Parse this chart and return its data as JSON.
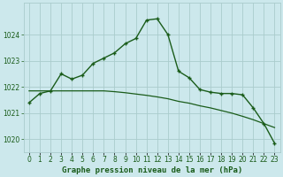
{
  "hours": [
    0,
    1,
    2,
    3,
    4,
    5,
    6,
    7,
    8,
    9,
    10,
    11,
    12,
    13,
    14,
    15,
    16,
    17,
    18,
    19,
    20,
    21,
    22,
    23
  ],
  "line1": [
    1021.4,
    1021.75,
    1021.85,
    1022.5,
    1022.3,
    1022.45,
    1022.9,
    1023.1,
    1023.3,
    1023.65,
    1023.85,
    1024.55,
    1024.6,
    1024.0,
    1022.6,
    1022.35,
    1021.9,
    1021.8,
    1021.75,
    1021.75,
    1021.7,
    1021.2,
    1020.6,
    1019.85
  ],
  "line2": [
    1021.85,
    1021.85,
    1021.85,
    1021.85,
    1021.85,
    1021.85,
    1021.85,
    1021.85,
    1021.82,
    1021.78,
    1021.73,
    1021.68,
    1021.62,
    1021.55,
    1021.45,
    1021.38,
    1021.28,
    1021.2,
    1021.1,
    1021.0,
    1020.88,
    1020.75,
    1020.6,
    1020.45
  ],
  "bg_color": "#cce8ec",
  "grid_color": "#aacccc",
  "line_color": "#1a5c1a",
  "ylabel_ticks": [
    1020,
    1021,
    1022,
    1023,
    1024
  ],
  "ylim": [
    1019.5,
    1025.2
  ],
  "xlim": [
    -0.5,
    23.5
  ],
  "xlabel": "Graphe pression niveau de la mer (hPa)",
  "xlabel_color": "#1a5c1a",
  "tick_color": "#1a5c1a",
  "tick_fontsize": 5.5,
  "xlabel_fontsize": 6.5
}
